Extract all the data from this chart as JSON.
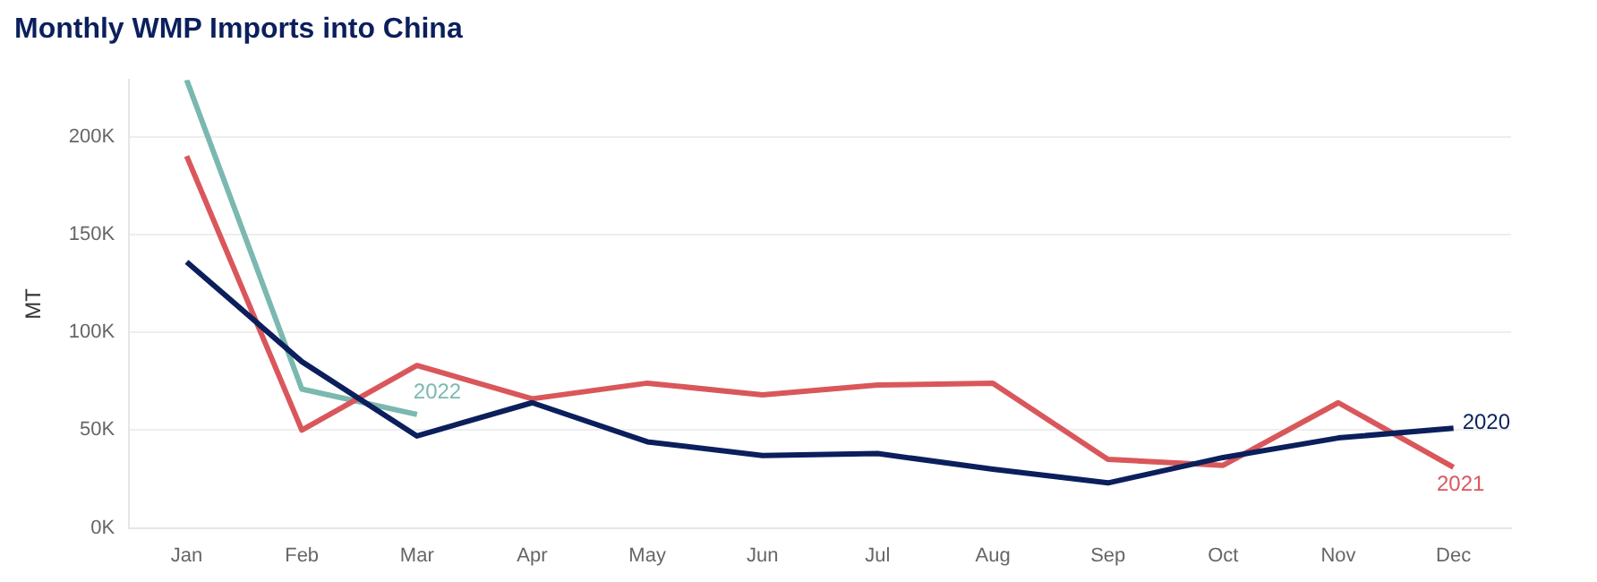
{
  "chart_data": {
    "type": "line",
    "title": "Monthly WMP Imports into China",
    "ylabel": "MT",
    "categories": [
      "Jan",
      "Feb",
      "Mar",
      "Apr",
      "May",
      "Jun",
      "Jul",
      "Aug",
      "Sep",
      "Oct",
      "Nov",
      "Dec"
    ],
    "series": [
      {
        "name": "2020",
        "color": "#0b1f5c",
        "values": [
          136000,
          85000,
          47000,
          64000,
          44000,
          37000,
          38000,
          30000,
          23000,
          36000,
          46000,
          51000
        ]
      },
      {
        "name": "2021",
        "color": "#d9575b",
        "values": [
          190000,
          50000,
          83000,
          66000,
          74000,
          68000,
          73000,
          74000,
          35000,
          32000,
          64000,
          31000
        ]
      },
      {
        "name": "2022",
        "color": "#7ab8b0",
        "values": [
          229000,
          71000,
          58000,
          null,
          null,
          null,
          null,
          null,
          null,
          null,
          null,
          null
        ]
      }
    ],
    "yticks": [
      {
        "value": 0,
        "label": "0K"
      },
      {
        "value": 50000,
        "label": "50K"
      },
      {
        "value": 100000,
        "label": "100K"
      },
      {
        "value": 150000,
        "label": "150K"
      },
      {
        "value": 200000,
        "label": "200K"
      }
    ],
    "ylim": [
      0,
      229000
    ],
    "grid": "y",
    "legend": false,
    "marker": "none",
    "line_style": "solid"
  }
}
